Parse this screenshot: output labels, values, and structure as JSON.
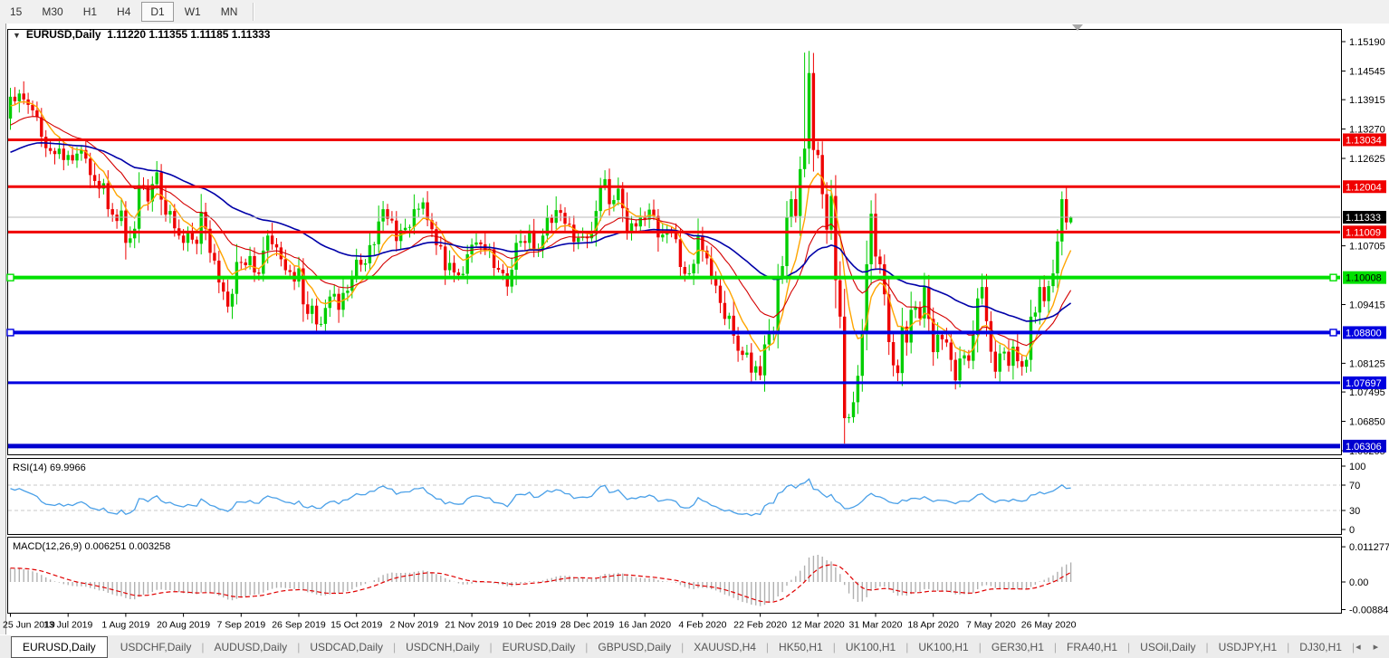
{
  "toolbar": {
    "timeframes": [
      "15",
      "M30",
      "H1",
      "H4",
      "D1",
      "W1",
      "MN"
    ],
    "active_timeframe": "D1"
  },
  "chart": {
    "title": {
      "symbol": "EURUSD,Daily",
      "ohlc_text": "1.11220 1.11355 1.11185 1.11333"
    }
  },
  "rsi_panel": {
    "label": "RSI(14) 69.9966",
    "value": 69.9966,
    "period": 14,
    "scale_labels": [
      "100",
      "70",
      "30",
      "0"
    ],
    "level_lines": [
      70,
      30
    ],
    "line_color": "#4aa0e8",
    "level_color": "#c8c8c8"
  },
  "macd_panel": {
    "label": "MACD(12,26,9) 0.006251 0.003258",
    "macd_value": 0.006251,
    "signal_value": 0.003258,
    "scale_labels": [
      "0.011277",
      "0.00",
      "-0.008845"
    ],
    "scale_values": [
      0.011277,
      0.0,
      -0.008845
    ],
    "histogram_color": "#b0b0b0",
    "signal_color": "#e00000"
  },
  "tabs": {
    "items": [
      "EURUSD,Daily",
      "USDCHF,Daily",
      "AUDUSD,Daily",
      "USDCAD,Daily",
      "USDCNH,Daily",
      "EURUSD,Daily",
      "GBPUSD,Daily",
      "XAUUSD,H4",
      "HK50,H1",
      "UK100,H1",
      "UK100,H1",
      "GER30,H1",
      "FRA40,H1",
      "USOil,Daily",
      "USDJPY,H1",
      "DJ30,H1"
    ],
    "active_index": 0,
    "left_arrow": "◂",
    "right_arrow": "▸"
  },
  "chart_data": {
    "type": "candlestick",
    "symbol": "EURUSD",
    "timeframe": "Daily",
    "current_bar": {
      "open": 1.1122,
      "high": 1.11355,
      "low": 1.11185,
      "close": 1.11333
    },
    "current_price_label": "1.11333",
    "y_axis_ticks": [
      "1.15190",
      "1.14545",
      "1.13915",
      "1.13270",
      "1.12625",
      "1.10705",
      "1.09415",
      "1.08125",
      "1.07495",
      "1.06850",
      "1.06205"
    ],
    "x_tick_labels": [
      "25 Jun 2019",
      "13 Jul 2019",
      "1 Aug 2019",
      "20 Aug 2019",
      "7 Sep 2019",
      "26 Sep 2019",
      "15 Oct 2019",
      "2 Nov 2019",
      "21 Nov 2019",
      "10 Dec 2019",
      "28 Dec 2019",
      "16 Jan 2020",
      "4 Feb 2020",
      "22 Feb 2020",
      "12 Mar 2020",
      "31 Mar 2020",
      "18 Apr 2020",
      "7 May 2020",
      "26 May 2020"
    ],
    "bars_per_tick": 13,
    "colors": {
      "candle_up": "#00ce00",
      "candle_down": "#ee0000",
      "current_price_line": "#b8b8b8",
      "current_price_badge": "#000000"
    },
    "horizontal_lines": [
      {
        "label": "1.13034",
        "price": 1.13034,
        "color": "#f00000",
        "width": 3,
        "text_color": "#ffffff",
        "selected": false
      },
      {
        "label": "1.12004",
        "price": 1.12004,
        "color": "#f00000",
        "width": 3,
        "text_color": "#ffffff",
        "selected": false
      },
      {
        "label": "1.11009",
        "price": 1.11009,
        "color": "#f00000",
        "width": 3,
        "text_color": "#ffffff",
        "selected": false
      },
      {
        "label": "1.10008",
        "price": 1.10008,
        "color": "#00e000",
        "width": 4,
        "text_color": "#000000",
        "selected": true
      },
      {
        "label": "1.08800",
        "price": 1.088,
        "color": "#0000e0",
        "width": 4,
        "text_color": "#ffffff",
        "selected": true
      },
      {
        "label": "1.07697",
        "price": 1.07697,
        "color": "#0000e0",
        "width": 3,
        "text_color": "#ffffff",
        "selected": false
      },
      {
        "label": "1.06306",
        "price": 1.06306,
        "color": "#0000d0",
        "width": 5,
        "text_color": "#ffffff",
        "selected": false
      }
    ],
    "moving_averages": [
      {
        "name": "ma-fast",
        "period": 8,
        "color": "#ffa500",
        "width": 1.4
      },
      {
        "name": "ma-mid",
        "period": 21,
        "color": "#d40000",
        "width": 1.1
      },
      {
        "name": "ma-slow",
        "period": 55,
        "color": "#0000a8",
        "width": 1.6
      }
    ],
    "first_open": 1.135,
    "history_closes": [
      1.1216,
      1.118,
      1.1175,
      1.1162,
      1.115,
      1.1131,
      1.1118,
      1.1124,
      1.117,
      1.1203,
      1.1216,
      1.1249,
      1.122,
      1.1183,
      1.117,
      1.1186,
      1.1202,
      1.121,
      1.1227,
      1.1218,
      1.1263,
      1.129,
      1.1306,
      1.1288,
      1.1338,
      1.137,
      1.1373,
      1.1365,
      1.139,
      1.1372,
      1.1404,
      1.1395,
      1.138,
      1.1391,
      1.137,
      1.1366
    ],
    "closes": [
      1.1398,
      1.1388,
      1.1405,
      1.1392,
      1.138,
      1.1368,
      1.1353,
      1.131,
      1.1285,
      1.1279,
      1.1272,
      1.1284,
      1.1259,
      1.127,
      1.1258,
      1.1273,
      1.1281,
      1.1262,
      1.1226,
      1.1213,
      1.1196,
      1.1208,
      1.1151,
      1.1139,
      1.1125,
      1.1148,
      1.1077,
      1.1087,
      1.1108,
      1.1204,
      1.1199,
      1.1168,
      1.1206,
      1.1232,
      1.1172,
      1.1139,
      1.1147,
      1.1109,
      1.1093,
      1.1077,
      1.1099,
      1.1084,
      1.1075,
      1.1145,
      1.1108,
      1.1055,
      1.1038,
      1.099,
      1.097,
      1.0937,
      1.0965,
      1.1035,
      1.1034,
      1.1028,
      1.1048,
      1.1012,
      1.1009,
      1.106,
      1.1093,
      1.1074,
      1.1067,
      1.1041,
      1.1017,
      1.1013,
      1.0992,
      1.1021,
      1.0942,
      1.0921,
      1.0939,
      1.0898,
      1.0899,
      1.0934,
      1.0959,
      1.0965,
      1.093,
      1.0967,
      1.0972,
      1.1003,
      1.104,
      1.1029,
      1.1032,
      1.1072,
      1.1074,
      1.1124,
      1.1151,
      1.113,
      1.1126,
      1.1081,
      1.1105,
      1.111,
      1.1112,
      1.1151,
      1.1152,
      1.1166,
      1.1127,
      1.1107,
      1.1072,
      1.1069,
      1.1017,
      1.1033,
      1.1012,
      1.1006,
      1.1009,
      1.1052,
      1.1073,
      1.1078,
      1.1074,
      1.1061,
      1.1063,
      1.1022,
      1.1018,
      1.101,
      1.0981,
      1.1018,
      1.1077,
      1.1081,
      1.1077,
      1.1104,
      1.106,
      1.1064,
      1.1093,
      1.1132,
      1.1121,
      1.1149,
      1.1143,
      1.1119,
      1.1117,
      1.1079,
      1.1088,
      1.1091,
      1.1087,
      1.1097,
      1.1147,
      1.1201,
      1.1217,
      1.1162,
      1.1171,
      1.1196,
      1.1153,
      1.1103,
      1.112,
      1.1113,
      1.1134,
      1.1128,
      1.115,
      1.1136,
      1.1089,
      1.1095,
      1.1104,
      1.11,
      1.1085,
      1.1024,
      1.1009,
      1.101,
      1.1031,
      1.1093,
      1.106,
      1.1043,
      1.1,
      1.0983,
      1.0945,
      1.091,
      1.0917,
      1.0873,
      1.084,
      1.0831,
      1.0836,
      1.0792,
      1.0806,
      1.0786,
      1.0854,
      1.088,
      1.0881,
      1.0998,
      1.1026,
      1.1134,
      1.1173,
      1.1136,
      1.1239,
      1.1284,
      1.145,
      1.1281,
      1.127,
      1.1184,
      1.1106,
      1.118,
      1.0995,
      1.0915,
      1.0692,
      1.0694,
      1.0727,
      1.0785,
      1.088,
      1.103,
      1.1141,
      1.1047,
      1.103,
      1.0964,
      1.0859,
      1.0808,
      1.0791,
      1.0893,
      1.0858,
      1.093,
      1.0936,
      1.0911,
      1.098,
      1.091,
      1.0837,
      1.0875,
      1.0865,
      1.0858,
      1.082,
      1.0775,
      1.0823,
      1.083,
      1.0818,
      1.0875,
      1.0955,
      1.098,
      1.0905,
      1.0838,
      1.0794,
      1.0834,
      1.0838,
      1.0807,
      1.0849,
      1.0817,
      1.0805,
      1.082,
      1.0915,
      1.0924,
      1.098,
      1.0949,
      1.0982,
      1.101,
      1.108,
      1.1173,
      1.1122,
      1.11333
    ],
    "wick_up": [
      0.0009,
      0.0019,
      0.0005,
      0.0024,
      0.0012,
      0.0007,
      0.0016,
      0.0011
    ],
    "wick_dn": [
      0.0014,
      0.0006,
      0.0021,
      0.0008,
      0.0017,
      0.001,
      0.0005,
      0.0013
    ],
    "overrides": {
      "69": {
        "low": 1.0877
      },
      "179": {
        "high": 1.1495
      },
      "180": {
        "low": 1.125
      },
      "188": {
        "low": 1.0636
      },
      "237": {
        "high": 1.119
      },
      "239": {
        "open": 1.1122,
        "high": 1.11355,
        "low": 1.11185,
        "close": 1.11333
      }
    }
  }
}
